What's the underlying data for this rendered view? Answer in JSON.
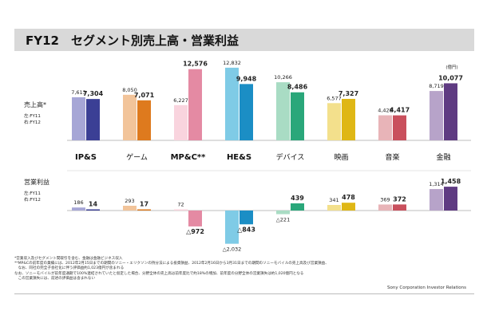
{
  "title": "FY12　セグメント別売上高・営業利益",
  "unit": "(億円)",
  "credit": "Sony Corporation  Investor Relations",
  "footnotes": [
    "*営業収入及びセグメント間取引を含む、金融は金融ビジネス収入",
    "**MP&Cの前年度の業績には、2012年2月15日までの期間のソニー・エリクソンの持分法による投資損益、2012年2月16日から3月31日までの期間のソニーモバイルの売上高及び営業損益、",
    "　なお、同社の完全子会社化に伴う評価益約1,023億円が含まれる",
    "なお、ソニーモバイルが前年度通期で100%連結されていたと仮定した場合、分野全体の売上高は前年度比で約18%の増加、前年度の分野全体の営業損失は約1,020億円となる",
    "　この営業損失には、前述の評価益は含まれない"
  ],
  "chart_data": {
    "type": "bar",
    "categories": [
      "IP&S",
      "ゲーム",
      "MP&C**",
      "HE&S",
      "デバイス",
      "映画",
      "音楽",
      "金融"
    ],
    "sales": {
      "label": "売上高*",
      "legend": [
        "左:FY11",
        "右:FY12"
      ],
      "series": [
        {
          "name": "FY11",
          "values": [
            7613,
            8050,
            6227,
            12832,
            10266,
            6577,
            4428,
            8719
          ]
        },
        {
          "name": "FY12",
          "values": [
            7304,
            7071,
            12576,
            9948,
            8486,
            7327,
            4417,
            10077
          ]
        }
      ],
      "labels": [
        [
          "7,613",
          "8,050",
          "6,227",
          "12,832",
          "10,266",
          "6,577",
          "4,428",
          "8,719"
        ],
        [
          "7,304",
          "7,071",
          "12,576",
          "9,948",
          "8,486",
          "7,327",
          "4,417",
          "10,077"
        ]
      ]
    },
    "operating_income": {
      "label": "営業利益",
      "legend": [
        "左:FY11",
        "右:FY12"
      ],
      "series": [
        {
          "name": "FY11",
          "values": [
            186,
            293,
            72,
            -2032,
            -221,
            341,
            369,
            1314
          ]
        },
        {
          "name": "FY12",
          "values": [
            14,
            17,
            -972,
            -843,
            439,
            478,
            372,
            1458
          ]
        }
      ],
      "labels": [
        [
          "186",
          "293",
          "72",
          "△2,032",
          "△221",
          "341",
          "369",
          "1,314"
        ],
        [
          "14",
          "17",
          "△972",
          "△843",
          "439",
          "478",
          "372",
          "1,458"
        ]
      ]
    },
    "colors": {
      "fy11": [
        "#a6a6d6",
        "#f2c49a",
        "#f9d4de",
        "#7fcbe6",
        "#a9dcc4",
        "#f3e08c",
        "#e8b4b8",
        "#b7a3c9"
      ],
      "fy12": [
        "#3b3f95",
        "#de7a1e",
        "#e48aa3",
        "#1b8ec5",
        "#2aa77a",
        "#dfb715",
        "#c9505d",
        "#5f3b82"
      ]
    }
  }
}
